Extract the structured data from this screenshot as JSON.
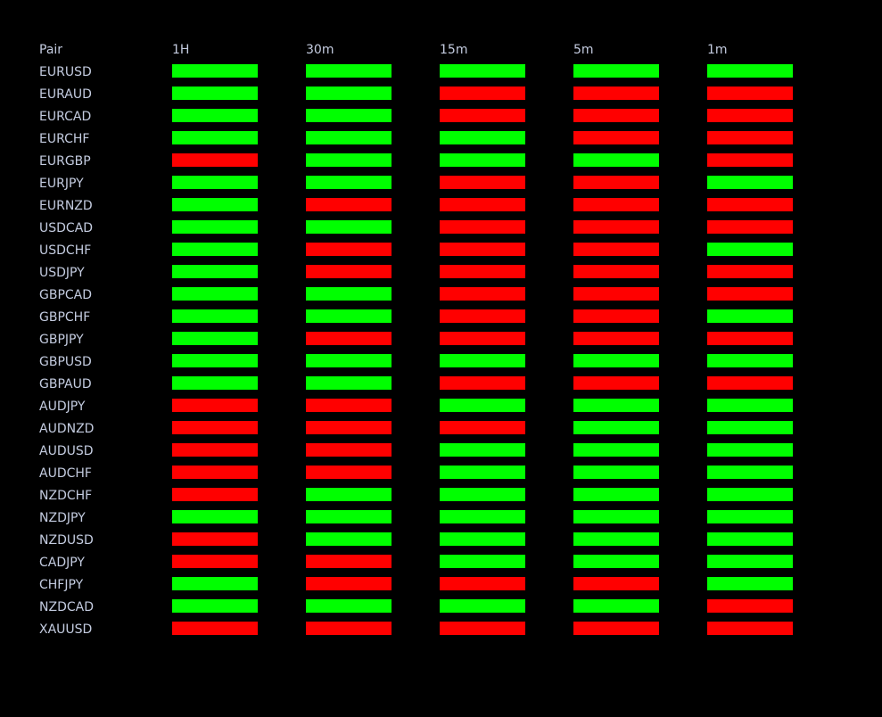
{
  "header": {
    "pair": "Pair",
    "timeframes": [
      "1H",
      "30m",
      "15m",
      "5m",
      "1m"
    ]
  },
  "rows": [
    {
      "pair": "EURUSD",
      "colors": [
        "#00ff00",
        "#00ff00",
        "#00ff00",
        "#00ff00",
        "#00ff00"
      ]
    },
    {
      "pair": "EURAUD",
      "colors": [
        "#00ff00",
        "#00ff00",
        "#ff0000",
        "#ff0000",
        "#ff0000"
      ]
    },
    {
      "pair": "EURCAD",
      "colors": [
        "#00ff00",
        "#00ff00",
        "#ff0000",
        "#ff0000",
        "#ff0000"
      ]
    },
    {
      "pair": "EURCHF",
      "colors": [
        "#00ff00",
        "#00ff00",
        "#00ff00",
        "#ff0000",
        "#ff0000"
      ]
    },
    {
      "pair": "EURGBP",
      "colors": [
        "#ff0000",
        "#00ff00",
        "#00ff00",
        "#00ff00",
        "#ff0000"
      ]
    },
    {
      "pair": "EURJPY",
      "colors": [
        "#00ff00",
        "#00ff00",
        "#ff0000",
        "#ff0000",
        "#00ff00"
      ]
    },
    {
      "pair": "EURNZD",
      "colors": [
        "#00ff00",
        "#ff0000",
        "#ff0000",
        "#ff0000",
        "#ff0000"
      ]
    },
    {
      "pair": "USDCAD",
      "colors": [
        "#00ff00",
        "#00ff00",
        "#ff0000",
        "#ff0000",
        "#ff0000"
      ]
    },
    {
      "pair": "USDCHF",
      "colors": [
        "#00ff00",
        "#ff0000",
        "#ff0000",
        "#ff0000",
        "#00ff00"
      ]
    },
    {
      "pair": "USDJPY",
      "colors": [
        "#00ff00",
        "#ff0000",
        "#ff0000",
        "#ff0000",
        "#ff0000"
      ]
    },
    {
      "pair": "GBPCAD",
      "colors": [
        "#00ff00",
        "#00ff00",
        "#ff0000",
        "#ff0000",
        "#ff0000"
      ]
    },
    {
      "pair": "GBPCHF",
      "colors": [
        "#00ff00",
        "#00ff00",
        "#ff0000",
        "#ff0000",
        "#00ff00"
      ]
    },
    {
      "pair": "GBPJPY",
      "colors": [
        "#00ff00",
        "#ff0000",
        "#ff0000",
        "#ff0000",
        "#ff0000"
      ]
    },
    {
      "pair": "GBPUSD",
      "colors": [
        "#00ff00",
        "#00ff00",
        "#00ff00",
        "#00ff00",
        "#00ff00"
      ]
    },
    {
      "pair": "GBPAUD",
      "colors": [
        "#00ff00",
        "#00ff00",
        "#ff0000",
        "#ff0000",
        "#ff0000"
      ]
    },
    {
      "pair": "AUDJPY",
      "colors": [
        "#ff0000",
        "#ff0000",
        "#00ff00",
        "#00ff00",
        "#00ff00"
      ]
    },
    {
      "pair": "AUDNZD",
      "colors": [
        "#ff0000",
        "#ff0000",
        "#ff0000",
        "#00ff00",
        "#00ff00"
      ]
    },
    {
      "pair": "AUDUSD",
      "colors": [
        "#ff0000",
        "#ff0000",
        "#00ff00",
        "#00ff00",
        "#00ff00"
      ]
    },
    {
      "pair": "AUDCHF",
      "colors": [
        "#ff0000",
        "#ff0000",
        "#00ff00",
        "#00ff00",
        "#00ff00"
      ]
    },
    {
      "pair": "NZDCHF",
      "colors": [
        "#ff0000",
        "#00ff00",
        "#00ff00",
        "#00ff00",
        "#00ff00"
      ]
    },
    {
      "pair": "NZDJPY",
      "colors": [
        "#00ff00",
        "#00ff00",
        "#00ff00",
        "#00ff00",
        "#00ff00"
      ]
    },
    {
      "pair": "NZDUSD",
      "colors": [
        "#ff0000",
        "#00ff00",
        "#00ff00",
        "#00ff00",
        "#00ff00"
      ]
    },
    {
      "pair": "CADJPY",
      "colors": [
        "#ff0000",
        "#ff0000",
        "#00ff00",
        "#00ff00",
        "#00ff00"
      ]
    },
    {
      "pair": "CHFJPY",
      "colors": [
        "#00ff00",
        "#ff0000",
        "#ff0000",
        "#ff0000",
        "#00ff00"
      ]
    },
    {
      "pair": "NZDCAD",
      "colors": [
        "#00ff00",
        "#00ff00",
        "#00ff00",
        "#00ff00",
        "#ff0000"
      ]
    },
    {
      "pair": "XAUUSD",
      "colors": [
        "#ff0000",
        "#ff0000",
        "#ff0000",
        "#ff0000",
        "#ff0000"
      ]
    }
  ]
}
